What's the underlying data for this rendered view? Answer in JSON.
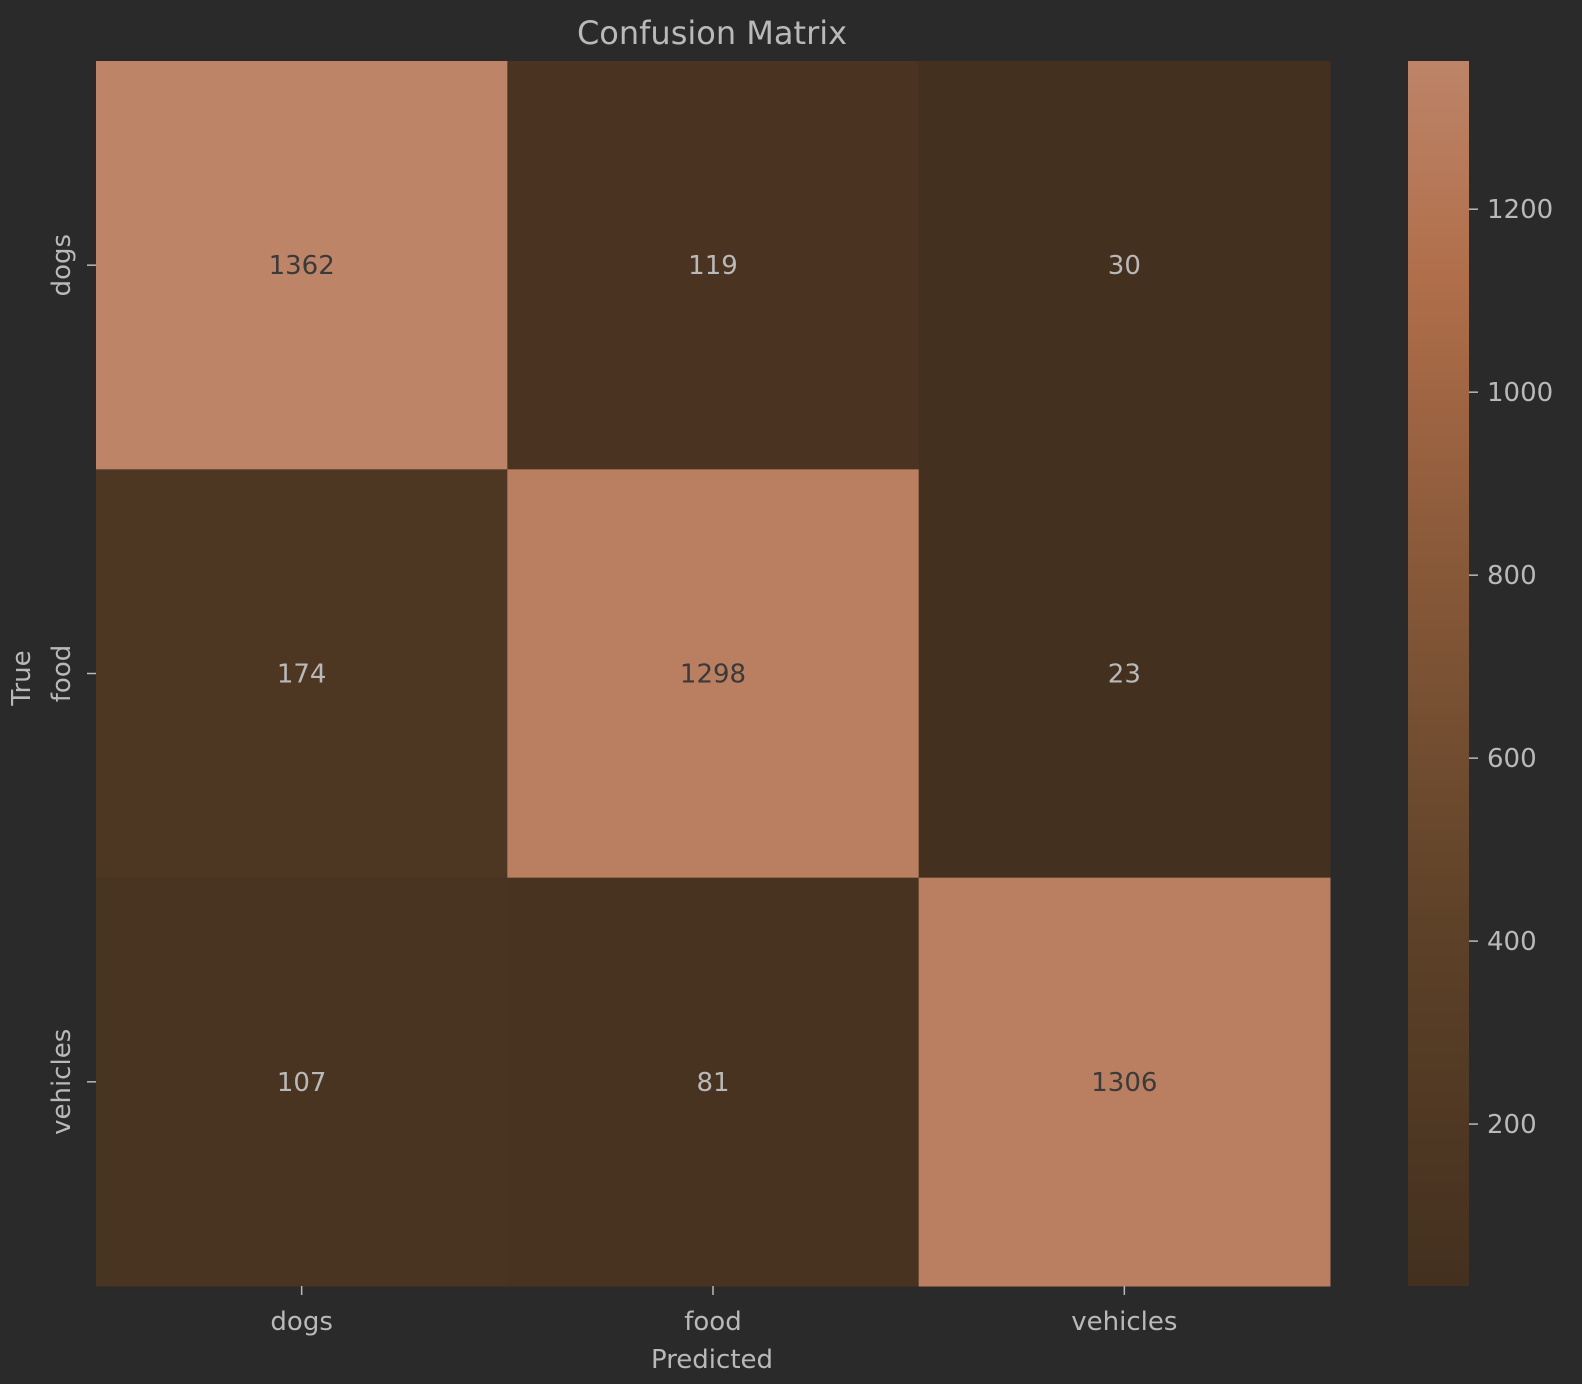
{
  "chart_data": {
    "type": "heatmap",
    "title": "Confusion Matrix",
    "xlabel": "Predicted",
    "ylabel": "True",
    "x_categories": [
      "dogs",
      "food",
      "vehicles"
    ],
    "y_categories": [
      "dogs",
      "food",
      "vehicles"
    ],
    "values": [
      [
        1362,
        119,
        30
      ],
      [
        174,
        1298,
        23
      ],
      [
        107,
        81,
        1306
      ]
    ],
    "colorbar": {
      "ticks": [
        200,
        400,
        600,
        800,
        1000,
        1200
      ],
      "tick_labels": [
        "200",
        "400",
        "600",
        "800",
        "1000",
        "1200"
      ]
    },
    "colors": {
      "background": "#2a2a2a",
      "text": "#b9b9b9",
      "cell_text": "#3a3a3a"
    }
  }
}
